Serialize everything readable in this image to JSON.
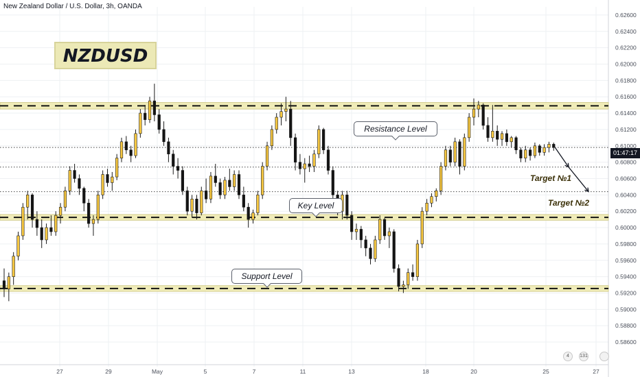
{
  "header": {
    "pair_title": "New Zealand Dollar / U.S. Dollar, 3h, OANDA"
  },
  "symbol_badge": "NZDUSD",
  "annotations": {
    "resistance_label": "Resistance Level",
    "key_label": "Key Level",
    "support_label": "Support Level",
    "target1_label": "Target №1",
    "target2_label": "Target №2"
  },
  "price_tag": "01:47:17",
  "event_icons": [
    {
      "name": "earnings-icon",
      "badge": "4"
    },
    {
      "name": "dividends-icon",
      "badge": "131"
    },
    {
      "name": "splits-icon",
      "badge": ""
    }
  ],
  "colors": {
    "bullish": "#f7c842",
    "bearish": "#141414",
    "zone_fill": "#f0ecb8",
    "zone_border": "#d2cc8c",
    "arrow": "#131722",
    "grid": "#eef0f3"
  },
  "chart_data": {
    "type": "candlestick",
    "title": "New Zealand Dollar / U.S. Dollar, 3h, OANDA",
    "y_axis": {
      "range": [
        0.5855,
        0.627
      ],
      "ticks": [
        "0.62600",
        "0.62400",
        "0.62200",
        "0.62000",
        "0.61800",
        "0.61600",
        "0.61400",
        "0.61200",
        "0.61000",
        "0.60800",
        "0.60600",
        "0.60400",
        "0.60200",
        "0.60000",
        "0.59800",
        "0.59600",
        "0.59400",
        "0.59200",
        "0.59000",
        "0.58800",
        "0.58600"
      ]
    },
    "x_axis": {
      "labels": [
        "27",
        "29",
        "May",
        "5",
        "7",
        "11",
        "13",
        "18",
        "20",
        "25",
        "27"
      ]
    },
    "zones": [
      {
        "name": "Resistance Level",
        "low": 0.6145,
        "high": 0.6153
      },
      {
        "name": "Key Level",
        "low": 0.6009,
        "high": 0.6016
      },
      {
        "name": "Support Level",
        "low": 0.5922,
        "high": 0.5929
      }
    ],
    "price_lines": [
      {
        "name": "current price",
        "value": 0.6098
      },
      {
        "name": "Target №1",
        "value": 0.6074
      },
      {
        "name": "Target №2",
        "value": 0.6044
      }
    ],
    "projection": [
      {
        "time": "current",
        "price": 0.6098
      },
      {
        "time": "t1",
        "price": 0.6074
      },
      {
        "time": "t2",
        "price": 0.6044
      }
    ],
    "series": [
      {
        "o": 0.5935,
        "h": 0.595,
        "l": 0.5915,
        "c": 0.5925
      },
      {
        "o": 0.5925,
        "h": 0.5945,
        "l": 0.591,
        "c": 0.594
      },
      {
        "o": 0.594,
        "h": 0.597,
        "l": 0.593,
        "c": 0.5965
      },
      {
        "o": 0.5965,
        "h": 0.5995,
        "l": 0.596,
        "c": 0.599
      },
      {
        "o": 0.599,
        "h": 0.603,
        "l": 0.5985,
        "c": 0.6025
      },
      {
        "o": 0.6025,
        "h": 0.6045,
        "l": 0.601,
        "c": 0.604
      },
      {
        "o": 0.604,
        "h": 0.6042,
        "l": 0.6,
        "c": 0.601
      },
      {
        "o": 0.601,
        "h": 0.602,
        "l": 0.599,
        "c": 0.6
      },
      {
        "o": 0.6,
        "h": 0.601,
        "l": 0.5975,
        "c": 0.5985
      },
      {
        "o": 0.5985,
        "h": 0.6005,
        "l": 0.598,
        "c": 0.6
      },
      {
        "o": 0.6,
        "h": 0.6015,
        "l": 0.599,
        "c": 0.5995
      },
      {
        "o": 0.5995,
        "h": 0.602,
        "l": 0.599,
        "c": 0.6015
      },
      {
        "o": 0.6015,
        "h": 0.603,
        "l": 0.6005,
        "c": 0.6025
      },
      {
        "o": 0.6025,
        "h": 0.605,
        "l": 0.602,
        "c": 0.6045
      },
      {
        "o": 0.6045,
        "h": 0.6075,
        "l": 0.604,
        "c": 0.607
      },
      {
        "o": 0.607,
        "h": 0.6078,
        "l": 0.6055,
        "c": 0.606
      },
      {
        "o": 0.606,
        "h": 0.6065,
        "l": 0.604,
        "c": 0.6048
      },
      {
        "o": 0.6048,
        "h": 0.605,
        "l": 0.602,
        "c": 0.603
      },
      {
        "o": 0.603,
        "h": 0.6035,
        "l": 0.6,
        "c": 0.6005
      },
      {
        "o": 0.6005,
        "h": 0.6015,
        "l": 0.599,
        "c": 0.601
      },
      {
        "o": 0.601,
        "h": 0.6045,
        "l": 0.6005,
        "c": 0.604
      },
      {
        "o": 0.604,
        "h": 0.607,
        "l": 0.6035,
        "c": 0.6065
      },
      {
        "o": 0.6065,
        "h": 0.6072,
        "l": 0.605,
        "c": 0.6055
      },
      {
        "o": 0.6055,
        "h": 0.6068,
        "l": 0.6045,
        "c": 0.6062
      },
      {
        "o": 0.6062,
        "h": 0.609,
        "l": 0.6058,
        "c": 0.6085
      },
      {
        "o": 0.6085,
        "h": 0.611,
        "l": 0.608,
        "c": 0.6105
      },
      {
        "o": 0.6105,
        "h": 0.6112,
        "l": 0.609,
        "c": 0.6095
      },
      {
        "o": 0.6095,
        "h": 0.61,
        "l": 0.608,
        "c": 0.6088
      },
      {
        "o": 0.6088,
        "h": 0.612,
        "l": 0.6085,
        "c": 0.6115
      },
      {
        "o": 0.6115,
        "h": 0.6145,
        "l": 0.611,
        "c": 0.614
      },
      {
        "o": 0.614,
        "h": 0.615,
        "l": 0.6125,
        "c": 0.6132
      },
      {
        "o": 0.6132,
        "h": 0.616,
        "l": 0.6128,
        "c": 0.6155
      },
      {
        "o": 0.6155,
        "h": 0.6176,
        "l": 0.613,
        "c": 0.6138
      },
      {
        "o": 0.6138,
        "h": 0.6145,
        "l": 0.6115,
        "c": 0.612
      },
      {
        "o": 0.612,
        "h": 0.613,
        "l": 0.61,
        "c": 0.6105
      },
      {
        "o": 0.6105,
        "h": 0.611,
        "l": 0.608,
        "c": 0.609
      },
      {
        "o": 0.609,
        "h": 0.6095,
        "l": 0.6065,
        "c": 0.6075
      },
      {
        "o": 0.6075,
        "h": 0.6085,
        "l": 0.606,
        "c": 0.607
      },
      {
        "o": 0.607,
        "h": 0.6075,
        "l": 0.604,
        "c": 0.6045
      },
      {
        "o": 0.6045,
        "h": 0.605,
        "l": 0.6015,
        "c": 0.602
      },
      {
        "o": 0.602,
        "h": 0.604,
        "l": 0.6012,
        "c": 0.6035
      },
      {
        "o": 0.6035,
        "h": 0.604,
        "l": 0.601,
        "c": 0.6018
      },
      {
        "o": 0.6018,
        "h": 0.605,
        "l": 0.6015,
        "c": 0.6045
      },
      {
        "o": 0.6045,
        "h": 0.606,
        "l": 0.603,
        "c": 0.6035
      },
      {
        "o": 0.6035,
        "h": 0.6068,
        "l": 0.603,
        "c": 0.6063
      },
      {
        "o": 0.6063,
        "h": 0.6078,
        "l": 0.605,
        "c": 0.6055
      },
      {
        "o": 0.6055,
        "h": 0.606,
        "l": 0.6035,
        "c": 0.604
      },
      {
        "o": 0.604,
        "h": 0.6062,
        "l": 0.6035,
        "c": 0.6058
      },
      {
        "o": 0.6058,
        "h": 0.6072,
        "l": 0.6045,
        "c": 0.605
      },
      {
        "o": 0.605,
        "h": 0.607,
        "l": 0.6045,
        "c": 0.6065
      },
      {
        "o": 0.6065,
        "h": 0.607,
        "l": 0.6035,
        "c": 0.604
      },
      {
        "o": 0.604,
        "h": 0.605,
        "l": 0.602,
        "c": 0.6025
      },
      {
        "o": 0.6025,
        "h": 0.603,
        "l": 0.6,
        "c": 0.601
      },
      {
        "o": 0.601,
        "h": 0.6022,
        "l": 0.6005,
        "c": 0.6018
      },
      {
        "o": 0.6018,
        "h": 0.6045,
        "l": 0.6015,
        "c": 0.604
      },
      {
        "o": 0.604,
        "h": 0.608,
        "l": 0.6035,
        "c": 0.6075
      },
      {
        "o": 0.6075,
        "h": 0.6105,
        "l": 0.607,
        "c": 0.61
      },
      {
        "o": 0.61,
        "h": 0.6125,
        "l": 0.6095,
        "c": 0.612
      },
      {
        "o": 0.612,
        "h": 0.614,
        "l": 0.6115,
        "c": 0.6135
      },
      {
        "o": 0.6135,
        "h": 0.6152,
        "l": 0.6125,
        "c": 0.6142
      },
      {
        "o": 0.6142,
        "h": 0.616,
        "l": 0.613,
        "c": 0.6145
      },
      {
        "o": 0.6145,
        "h": 0.6155,
        "l": 0.61,
        "c": 0.611
      },
      {
        "o": 0.611,
        "h": 0.6115,
        "l": 0.607,
        "c": 0.608
      },
      {
        "o": 0.608,
        "h": 0.609,
        "l": 0.6065,
        "c": 0.6072
      },
      {
        "o": 0.6072,
        "h": 0.6085,
        "l": 0.6055,
        "c": 0.6078
      },
      {
        "o": 0.6078,
        "h": 0.6088,
        "l": 0.6068,
        "c": 0.6075
      },
      {
        "o": 0.6075,
        "h": 0.6095,
        "l": 0.6068,
        "c": 0.609
      },
      {
        "o": 0.609,
        "h": 0.6125,
        "l": 0.6085,
        "c": 0.612
      },
      {
        "o": 0.612,
        "h": 0.6122,
        "l": 0.609,
        "c": 0.6095
      },
      {
        "o": 0.6095,
        "h": 0.61,
        "l": 0.6065,
        "c": 0.607
      },
      {
        "o": 0.607,
        "h": 0.6075,
        "l": 0.6035,
        "c": 0.604
      },
      {
        "o": 0.604,
        "h": 0.6045,
        "l": 0.6015,
        "c": 0.602
      },
      {
        "o": 0.602,
        "h": 0.6045,
        "l": 0.601,
        "c": 0.604
      },
      {
        "o": 0.604,
        "h": 0.6045,
        "l": 0.601,
        "c": 0.6015
      },
      {
        "o": 0.6015,
        "h": 0.602,
        "l": 0.5985,
        "c": 0.5995
      },
      {
        "o": 0.5995,
        "h": 0.6005,
        "l": 0.5985,
        "c": 0.5998
      },
      {
        "o": 0.5998,
        "h": 0.6002,
        "l": 0.5975,
        "c": 0.5985
      },
      {
        "o": 0.5985,
        "h": 0.599,
        "l": 0.5965,
        "c": 0.5975
      },
      {
        "o": 0.5975,
        "h": 0.598,
        "l": 0.5955,
        "c": 0.5962
      },
      {
        "o": 0.5962,
        "h": 0.599,
        "l": 0.5958,
        "c": 0.5985
      },
      {
        "o": 0.5985,
        "h": 0.6015,
        "l": 0.598,
        "c": 0.601
      },
      {
        "o": 0.601,
        "h": 0.6012,
        "l": 0.5985,
        "c": 0.599
      },
      {
        "o": 0.599,
        "h": 0.6,
        "l": 0.5975,
        "c": 0.5995
      },
      {
        "o": 0.5995,
        "h": 0.5998,
        "l": 0.5945,
        "c": 0.595
      },
      {
        "o": 0.595,
        "h": 0.5955,
        "l": 0.5922,
        "c": 0.5928
      },
      {
        "o": 0.5928,
        "h": 0.5935,
        "l": 0.592,
        "c": 0.593
      },
      {
        "o": 0.593,
        "h": 0.595,
        "l": 0.5925,
        "c": 0.5945
      },
      {
        "o": 0.5945,
        "h": 0.5955,
        "l": 0.5935,
        "c": 0.594
      },
      {
        "o": 0.594,
        "h": 0.5985,
        "l": 0.5935,
        "c": 0.598
      },
      {
        "o": 0.598,
        "h": 0.6025,
        "l": 0.5975,
        "c": 0.602
      },
      {
        "o": 0.602,
        "h": 0.6035,
        "l": 0.6015,
        "c": 0.603
      },
      {
        "o": 0.603,
        "h": 0.6042,
        "l": 0.6025,
        "c": 0.6038
      },
      {
        "o": 0.6038,
        "h": 0.6048,
        "l": 0.6032,
        "c": 0.6045
      },
      {
        "o": 0.6045,
        "h": 0.608,
        "l": 0.604,
        "c": 0.6075
      },
      {
        "o": 0.6075,
        "h": 0.61,
        "l": 0.607,
        "c": 0.6095
      },
      {
        "o": 0.6095,
        "h": 0.61,
        "l": 0.6075,
        "c": 0.608
      },
      {
        "o": 0.608,
        "h": 0.611,
        "l": 0.6075,
        "c": 0.6105
      },
      {
        "o": 0.6105,
        "h": 0.6108,
        "l": 0.6065,
        "c": 0.6075
      },
      {
        "o": 0.6075,
        "h": 0.6115,
        "l": 0.607,
        "c": 0.611
      },
      {
        "o": 0.611,
        "h": 0.614,
        "l": 0.6105,
        "c": 0.6135
      },
      {
        "o": 0.6135,
        "h": 0.6158,
        "l": 0.6125,
        "c": 0.6145
      },
      {
        "o": 0.6145,
        "h": 0.6155,
        "l": 0.6135,
        "c": 0.615
      },
      {
        "o": 0.615,
        "h": 0.6152,
        "l": 0.612,
        "c": 0.6125
      },
      {
        "o": 0.6125,
        "h": 0.6135,
        "l": 0.6105,
        "c": 0.611
      },
      {
        "o": 0.611,
        "h": 0.615,
        "l": 0.6105,
        "c": 0.6118
      },
      {
        "o": 0.6118,
        "h": 0.6125,
        "l": 0.61,
        "c": 0.6108
      },
      {
        "o": 0.6108,
        "h": 0.6118,
        "l": 0.61,
        "c": 0.6115
      },
      {
        "o": 0.6115,
        "h": 0.612,
        "l": 0.61,
        "c": 0.6105
      },
      {
        "o": 0.6105,
        "h": 0.6112,
        "l": 0.6098,
        "c": 0.611
      },
      {
        "o": 0.611,
        "h": 0.6112,
        "l": 0.609,
        "c": 0.6095
      },
      {
        "o": 0.6095,
        "h": 0.6098,
        "l": 0.608,
        "c": 0.6085
      },
      {
        "o": 0.6085,
        "h": 0.61,
        "l": 0.608,
        "c": 0.6095
      },
      {
        "o": 0.6095,
        "h": 0.6098,
        "l": 0.6082,
        "c": 0.6088
      },
      {
        "o": 0.6088,
        "h": 0.6104,
        "l": 0.6085,
        "c": 0.61
      },
      {
        "o": 0.61,
        "h": 0.6102,
        "l": 0.6088,
        "c": 0.6092
      },
      {
        "o": 0.6092,
        "h": 0.6102,
        "l": 0.6088,
        "c": 0.6098
      },
      {
        "o": 0.6098,
        "h": 0.6105,
        "l": 0.6092,
        "c": 0.6102
      },
      {
        "o": 0.6102,
        "h": 0.6104,
        "l": 0.6094,
        "c": 0.6098
      }
    ]
  }
}
